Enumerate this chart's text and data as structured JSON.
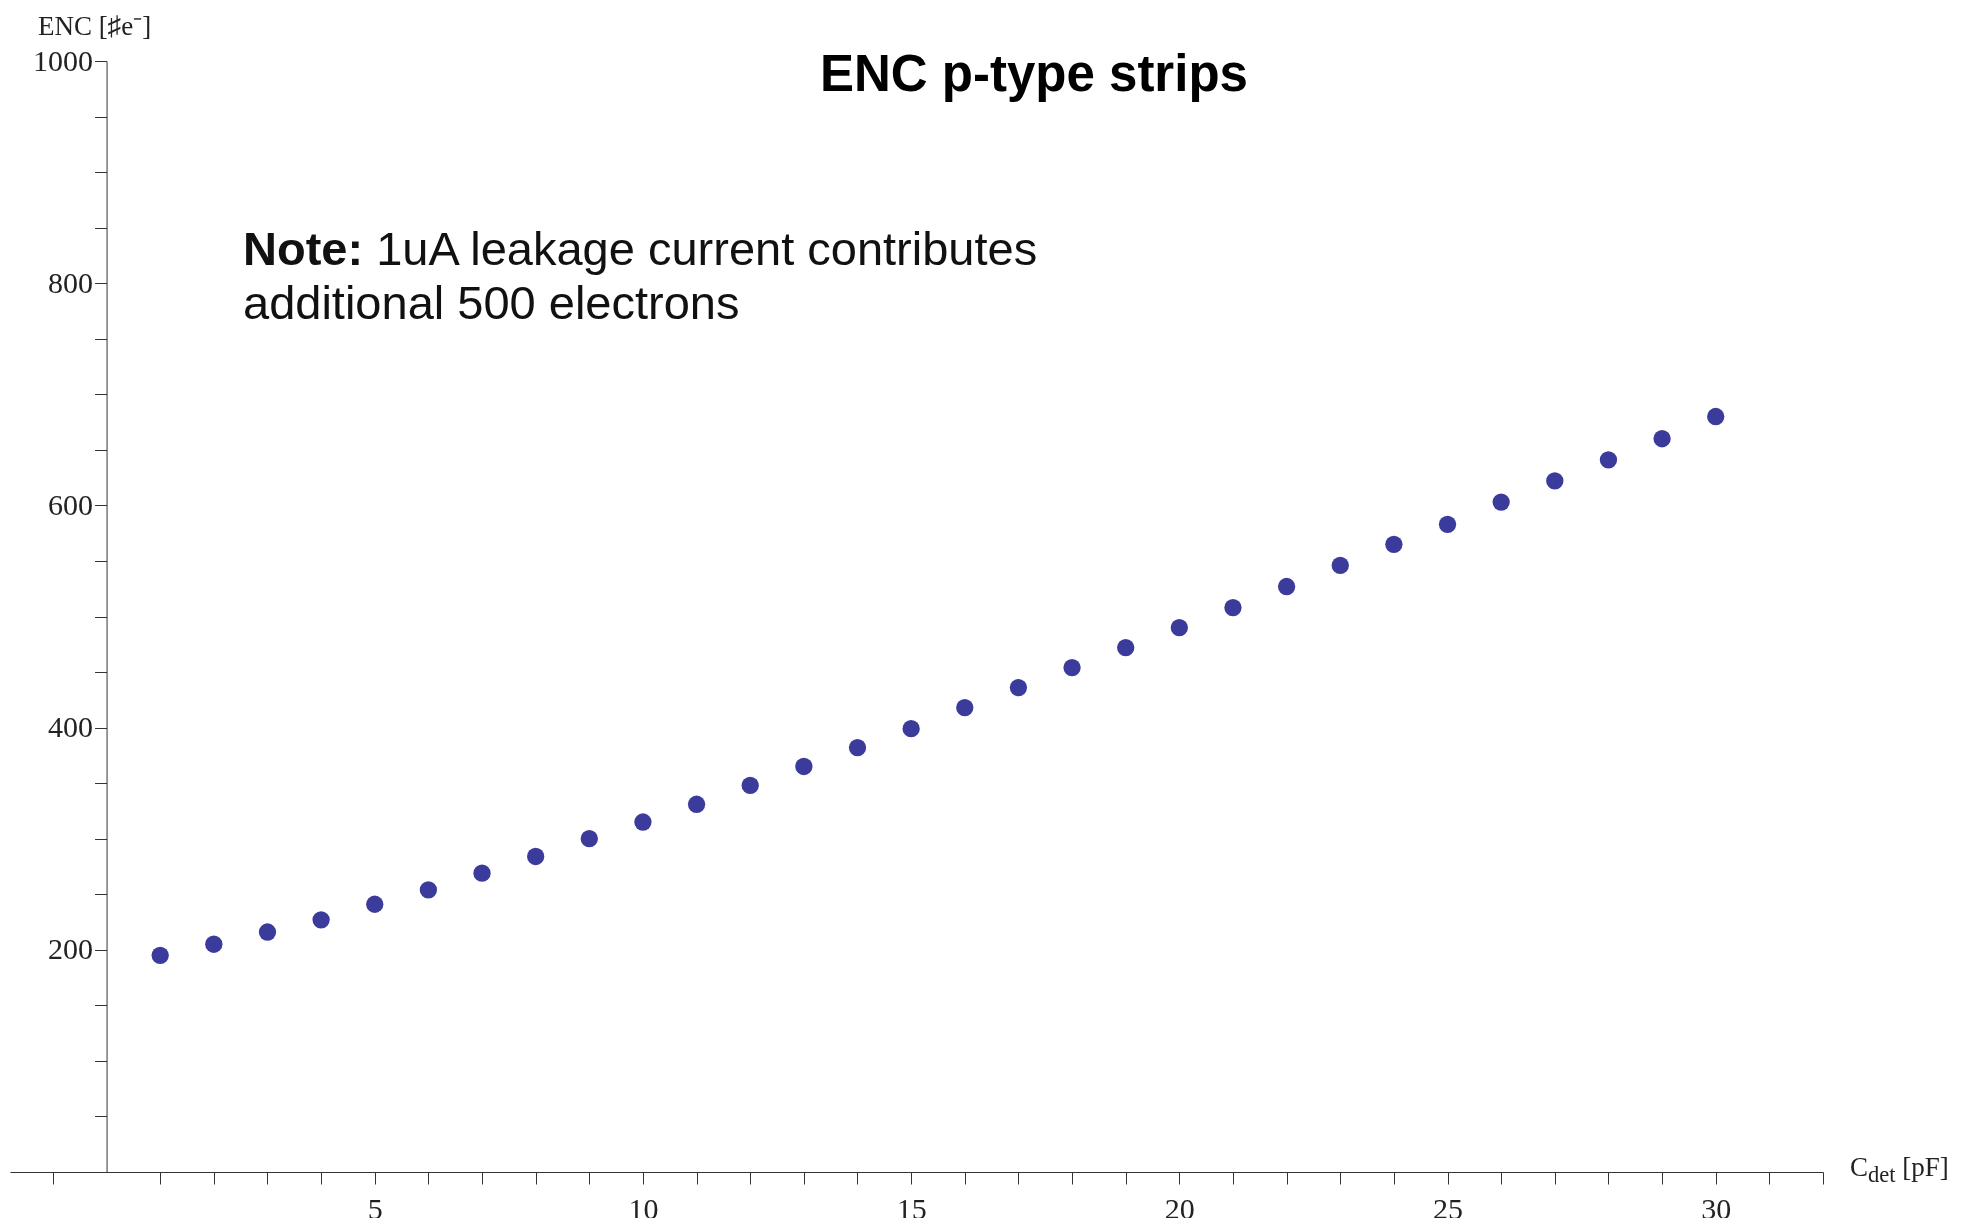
{
  "chart_data": {
    "type": "scatter",
    "title": "ENC p-type strips",
    "xlabel": "C$_{det}$ [pF]",
    "ylabel": "ENC [♯e⁻]",
    "annotations": [
      "Note: 1uA leakage current contributes additional 500 electrons"
    ],
    "x": [
      1,
      2,
      3,
      4,
      5,
      6,
      7,
      8,
      9,
      10,
      11,
      12,
      13,
      14,
      15,
      16,
      17,
      18,
      19,
      20,
      21,
      22,
      23,
      24,
      25,
      26,
      27,
      28,
      29,
      30
    ],
    "series": [
      {
        "color": "#3b3b9b",
        "values": [
          195,
          205,
          216,
          227,
          241,
          254,
          269,
          284,
          300,
          315,
          331,
          348,
          365,
          382,
          399,
          418,
          436,
          454,
          472,
          490,
          508,
          527,
          546,
          565,
          583,
          603,
          622,
          641,
          660,
          680
        ]
      }
    ],
    "marker": "circle",
    "grid": false,
    "legend": false,
    "xlim": [
      -1.8,
      32
    ],
    "ylim": [
      0,
      1000
    ],
    "xticks": [
      {
        "value": 1,
        "label": null
      },
      {
        "value": 2,
        "label": null
      },
      {
        "value": 3,
        "label": null
      },
      {
        "value": 4,
        "label": null
      },
      5,
      {
        "value": 6,
        "label": null
      },
      {
        "value": 7,
        "label": null
      },
      {
        "value": 8,
        "label": null
      },
      {
        "value": 9,
        "label": null
      },
      10,
      {
        "value": 11,
        "label": null
      },
      {
        "value": 12,
        "label": null
      },
      {
        "value": 13,
        "label": null
      },
      {
        "value": 14,
        "label": null
      },
      15,
      {
        "value": 16,
        "label": null
      },
      {
        "value": 17,
        "label": null
      },
      {
        "value": 18,
        "label": null
      },
      {
        "value": 19,
        "label": null
      },
      20,
      {
        "value": 21,
        "label": null
      },
      {
        "value": 22,
        "label": null
      },
      {
        "value": 23,
        "label": null
      },
      {
        "value": 24,
        "label": null
      },
      25,
      {
        "value": 26,
        "label": null
      },
      {
        "value": 27,
        "label": null
      },
      {
        "value": 28,
        "label": null
      },
      {
        "value": 29,
        "label": null
      },
      30,
      {
        "value": 31,
        "label": null
      },
      {
        "value": 32,
        "label": null
      },
      {
        "value": -1,
        "label": null
      }
    ],
    "yticks": [
      {
        "value": 50,
        "label": null
      },
      {
        "value": 100,
        "label": null
      },
      {
        "value": 150,
        "label": null
      },
      200,
      {
        "value": 250,
        "label": null
      },
      {
        "value": 300,
        "label": null
      },
      {
        "value": 350,
        "label": null
      },
      400,
      {
        "value": 450,
        "label": null
      },
      {
        "value": 500,
        "label": null
      },
      {
        "value": 550,
        "label": null
      },
      600,
      {
        "value": 650,
        "label": null
      },
      {
        "value": 700,
        "label": null
      },
      {
        "value": 750,
        "label": null
      },
      800,
      {
        "value": 850,
        "label": null
      },
      {
        "value": 900,
        "label": null
      },
      {
        "value": 950,
        "label": null
      },
      1000
    ]
  }
}
